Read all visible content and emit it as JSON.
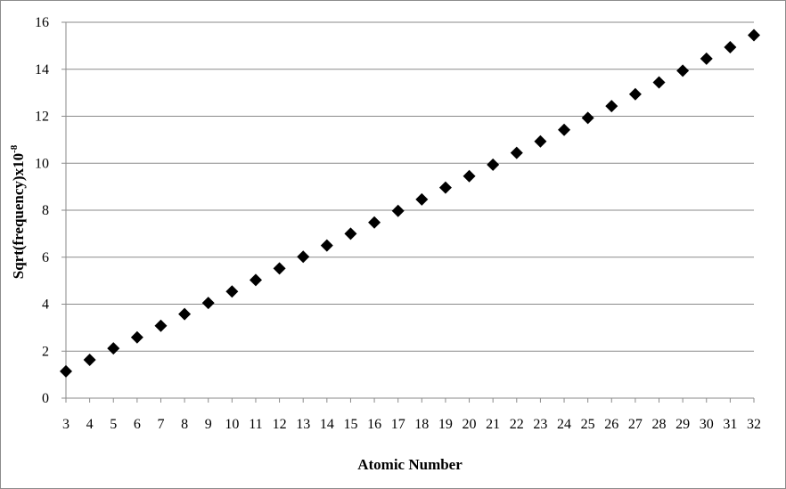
{
  "chart_data": {
    "type": "scatter",
    "title": "",
    "xlabel": "Atomic Number",
    "ylabel": "Sqrt(frequency)x10",
    "ylabel_superscript": "-8",
    "xlim": [
      3,
      32
    ],
    "ylim": [
      0,
      16
    ],
    "x_ticks": [
      3,
      4,
      5,
      6,
      7,
      8,
      9,
      10,
      11,
      12,
      13,
      14,
      15,
      16,
      17,
      18,
      19,
      20,
      21,
      22,
      23,
      24,
      25,
      26,
      27,
      28,
      29,
      30,
      31,
      32
    ],
    "y_ticks": [
      0,
      2,
      4,
      6,
      8,
      10,
      12,
      14,
      16
    ],
    "grid": "horizontal",
    "legend": "none",
    "marker": "diamond",
    "marker_color": "#000000",
    "series": [
      {
        "x": [
          3,
          4,
          5,
          6,
          7,
          8,
          9,
          10,
          11,
          12,
          13,
          14,
          15,
          16,
          17,
          18,
          19,
          20,
          21,
          22,
          23,
          24,
          25,
          26,
          27,
          28,
          29,
          30,
          31,
          32
        ],
        "y": [
          1.14,
          1.63,
          2.12,
          2.59,
          3.08,
          3.58,
          4.05,
          4.54,
          5.03,
          5.52,
          6.02,
          6.5,
          7.0,
          7.48,
          7.97,
          8.46,
          8.96,
          9.45,
          9.94,
          10.44,
          10.93,
          11.42,
          11.93,
          12.43,
          12.94,
          13.44,
          13.94,
          14.45,
          14.94,
          15.45
        ]
      }
    ]
  }
}
